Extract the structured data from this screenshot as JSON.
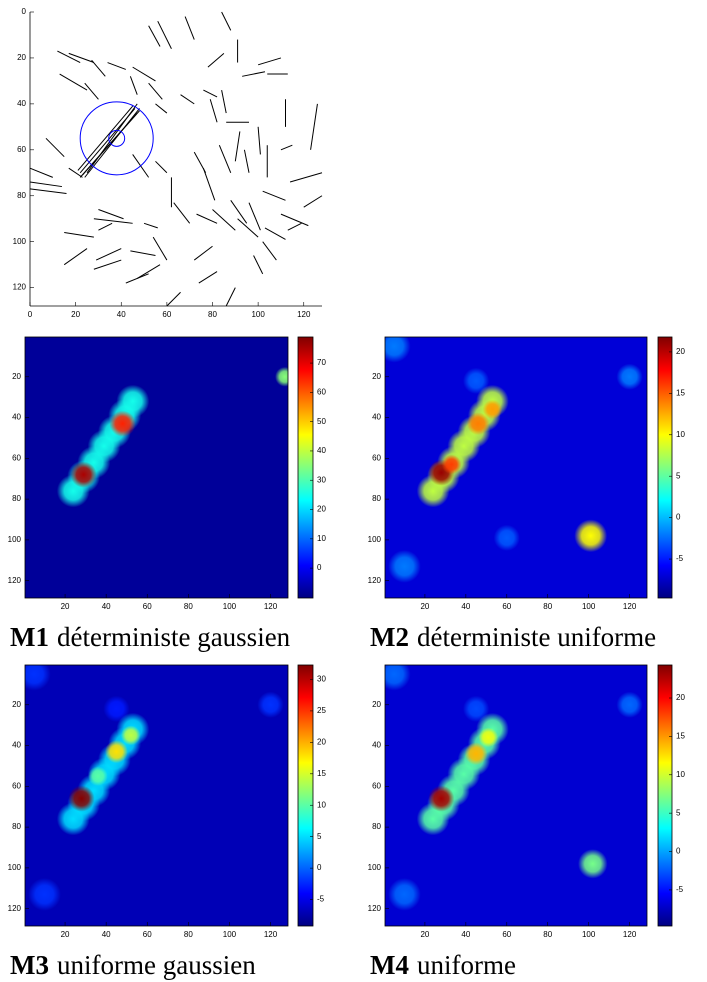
{
  "chart_data": [
    {
      "type": "segments",
      "xlim": [
        0,
        128
      ],
      "ylim": [
        0,
        128
      ],
      "y_reversed": true,
      "xticks": [
        0,
        20,
        40,
        60,
        80,
        100,
        120
      ],
      "yticks": [
        0,
        20,
        40,
        60,
        80,
        100,
        120
      ],
      "color": "#000000",
      "circle_color": "#0000ff",
      "segments": [
        [
          52,
          6,
          57,
          15
        ],
        [
          56,
          4,
          62,
          16
        ],
        [
          68,
          2,
          72,
          12
        ],
        [
          84,
          0,
          88,
          8
        ],
        [
          91,
          12,
          91,
          22
        ],
        [
          78,
          24,
          85,
          18
        ],
        [
          93,
          28,
          103,
          26
        ],
        [
          100,
          23,
          110,
          20
        ],
        [
          104,
          27,
          113,
          27
        ],
        [
          17,
          18,
          28,
          22
        ],
        [
          12,
          17,
          22,
          22
        ],
        [
          27,
          21,
          33,
          28
        ],
        [
          13,
          27,
          25,
          34
        ],
        [
          24,
          31,
          30,
          38
        ],
        [
          34,
          22,
          42,
          25
        ],
        [
          44,
          28,
          47,
          36
        ],
        [
          45,
          24,
          55,
          30
        ],
        [
          52,
          31,
          58,
          38
        ],
        [
          55,
          40,
          60,
          44
        ],
        [
          66,
          36,
          72,
          40
        ],
        [
          76,
          34,
          82,
          37
        ],
        [
          79,
          38,
          82,
          48
        ],
        [
          84,
          34,
          86,
          44
        ],
        [
          86,
          48,
          96,
          48
        ],
        [
          92,
          52,
          90,
          65
        ],
        [
          100,
          50,
          101,
          62
        ],
        [
          112,
          38,
          112,
          50
        ],
        [
          126,
          40,
          123,
          60
        ],
        [
          7,
          55,
          15,
          63
        ],
        [
          0,
          68,
          10,
          72
        ],
        [
          0,
          74,
          14,
          76
        ],
        [
          0,
          77,
          16,
          79
        ],
        [
          17,
          68,
          23,
          72
        ],
        [
          45,
          62,
          52,
          72
        ],
        [
          55,
          65,
          60,
          70
        ],
        [
          62,
          72,
          62,
          85
        ],
        [
          72,
          61,
          77,
          70
        ],
        [
          76,
          68,
          81,
          82
        ],
        [
          83,
          58,
          88,
          70
        ],
        [
          94,
          60,
          96,
          70
        ],
        [
          104,
          58,
          104,
          72
        ],
        [
          110,
          60,
          115,
          58
        ],
        [
          114,
          74,
          128,
          70
        ],
        [
          102,
          78,
          112,
          82
        ],
        [
          120,
          85,
          128,
          80
        ],
        [
          110,
          88,
          122,
          93
        ],
        [
          63,
          83,
          70,
          92
        ],
        [
          73,
          88,
          82,
          92
        ],
        [
          80,
          86,
          90,
          95
        ],
        [
          91,
          90,
          100,
          98
        ],
        [
          96,
          83,
          101,
          95
        ],
        [
          103,
          94,
          112,
          99
        ],
        [
          102,
          100,
          108,
          108
        ],
        [
          98,
          106,
          102,
          114
        ],
        [
          30,
          86,
          41,
          90
        ],
        [
          28,
          90,
          45,
          92
        ],
        [
          50,
          92,
          56,
          94
        ],
        [
          15,
          96,
          28,
          98
        ],
        [
          30,
          95,
          36,
          92
        ],
        [
          54,
          98,
          60,
          108
        ],
        [
          15,
          110,
          25,
          103
        ],
        [
          29,
          108,
          40,
          103
        ],
        [
          28,
          112,
          40,
          108
        ],
        [
          44,
          104,
          55,
          106
        ],
        [
          72,
          108,
          80,
          102
        ],
        [
          47,
          116,
          57,
          110
        ],
        [
          42,
          118,
          52,
          114
        ],
        [
          60,
          128,
          66,
          122
        ],
        [
          74,
          118,
          82,
          113
        ],
        [
          86,
          128,
          90,
          120
        ],
        [
          88,
          82,
          95,
          92
        ],
        [
          113,
          95,
          119,
          92
        ],
        [
          22,
          70,
          46,
          42
        ],
        [
          23,
          71,
          48,
          43
        ],
        [
          21,
          69,
          45,
          41
        ],
        [
          24,
          72,
          48,
          42
        ],
        [
          22,
          72,
          47,
          44
        ],
        [
          25,
          70,
          47,
          40
        ]
      ],
      "circles": [
        {
          "x": 38,
          "y": 55,
          "r": 16
        },
        {
          "x": 38,
          "y": 55,
          "r": 3.5
        }
      ]
    },
    {
      "type": "heatmap",
      "label": "M1",
      "caption": "déterministe gaussien",
      "xlim": [
        0.5,
        128.5
      ],
      "ylim": [
        0.5,
        128.5
      ],
      "y_reversed": true,
      "xticks": [
        20,
        40,
        60,
        80,
        100,
        120
      ],
      "yticks": [
        20,
        40,
        60,
        80,
        100,
        120
      ],
      "clim": [
        -10.2,
        78.9
      ],
      "cticks": [
        0,
        10,
        20,
        30,
        40,
        50,
        60,
        70
      ],
      "background": -8,
      "blobs": [
        {
          "x": 24,
          "y": 76,
          "r": 5,
          "value": 25
        },
        {
          "x": 29,
          "y": 69,
          "r": 5,
          "value": 25
        },
        {
          "x": 34,
          "y": 62,
          "r": 5,
          "value": 25
        },
        {
          "x": 39,
          "y": 54,
          "r": 5,
          "value": 25
        },
        {
          "x": 44,
          "y": 47,
          "r": 5,
          "value": 25
        },
        {
          "x": 49,
          "y": 39,
          "r": 5,
          "value": 25
        },
        {
          "x": 53,
          "y": 32,
          "r": 5,
          "value": 25
        },
        {
          "x": 29,
          "y": 68,
          "r": 4,
          "value": 75
        },
        {
          "x": 48,
          "y": 43,
          "r": 4,
          "value": 65
        },
        {
          "x": 127,
          "y": 20,
          "r": 3,
          "value": 35
        }
      ]
    },
    {
      "type": "heatmap",
      "label": "M2",
      "caption": "déterministe uniforme",
      "xlim": [
        0.5,
        128.5
      ],
      "ylim": [
        0.5,
        128.5
      ],
      "y_reversed": true,
      "xticks": [
        20,
        40,
        60,
        80,
        100,
        120
      ],
      "yticks": [
        20,
        40,
        60,
        80,
        100,
        120
      ],
      "clim": [
        -9.7,
        21.8
      ],
      "cticks": [
        -5,
        0,
        5,
        10,
        15,
        20
      ],
      "background": -7,
      "blobs": [
        {
          "x": 120,
          "y": 20,
          "r": 4,
          "value": -2
        },
        {
          "x": 5,
          "y": 5,
          "r": 5,
          "value": -2
        },
        {
          "x": 10,
          "y": 113,
          "r": 5,
          "value": -2
        },
        {
          "x": 60,
          "y": 99,
          "r": 4,
          "value": -3
        },
        {
          "x": 45,
          "y": 22,
          "r": 4,
          "value": -3
        },
        {
          "x": 24,
          "y": 76,
          "r": 5,
          "value": 8
        },
        {
          "x": 29,
          "y": 69,
          "r": 5,
          "value": 8
        },
        {
          "x": 34,
          "y": 62,
          "r": 5,
          "value": 8
        },
        {
          "x": 39,
          "y": 54,
          "r": 5,
          "value": 8
        },
        {
          "x": 44,
          "y": 47,
          "r": 5,
          "value": 8
        },
        {
          "x": 49,
          "y": 39,
          "r": 5,
          "value": 8
        },
        {
          "x": 53,
          "y": 32,
          "r": 5,
          "value": 8
        },
        {
          "x": 28,
          "y": 67,
          "r": 4,
          "value": 21
        },
        {
          "x": 33,
          "y": 63,
          "r": 3,
          "value": 16
        },
        {
          "x": 46,
          "y": 43,
          "r": 3.5,
          "value": 14
        },
        {
          "x": 53,
          "y": 36,
          "r": 3,
          "value": 13
        },
        {
          "x": 101,
          "y": 98,
          "r": 5,
          "value": 10
        }
      ]
    },
    {
      "type": "heatmap",
      "label": "M3",
      "caption": "uniforme gaussien",
      "xlim": [
        0.5,
        128.5
      ],
      "ylim": [
        0.5,
        128.5
      ],
      "y_reversed": true,
      "xticks": [
        20,
        40,
        60,
        80,
        100,
        120
      ],
      "yticks": [
        20,
        40,
        60,
        80,
        100,
        120
      ],
      "clim": [
        -9.2,
        32.3
      ],
      "cticks": [
        -5,
        0,
        5,
        10,
        15,
        20,
        25,
        30
      ],
      "background": -7,
      "blobs": [
        {
          "x": 120,
          "y": 20,
          "r": 4,
          "value": -2
        },
        {
          "x": 5,
          "y": 5,
          "r": 5,
          "value": -2
        },
        {
          "x": 10,
          "y": 113,
          "r": 5,
          "value": -2
        },
        {
          "x": 45,
          "y": 22,
          "r": 4,
          "value": -3
        },
        {
          "x": 24,
          "y": 76,
          "r": 5,
          "value": 5
        },
        {
          "x": 29,
          "y": 69,
          "r": 5,
          "value": 5
        },
        {
          "x": 34,
          "y": 62,
          "r": 5,
          "value": 5
        },
        {
          "x": 39,
          "y": 54,
          "r": 5,
          "value": 5
        },
        {
          "x": 44,
          "y": 47,
          "r": 5,
          "value": 5
        },
        {
          "x": 49,
          "y": 39,
          "r": 5,
          "value": 5
        },
        {
          "x": 53,
          "y": 32,
          "r": 5,
          "value": 5
        },
        {
          "x": 28,
          "y": 66,
          "r": 4,
          "value": 32
        },
        {
          "x": 45,
          "y": 43,
          "r": 3.5,
          "value": 18
        },
        {
          "x": 52,
          "y": 35,
          "r": 3,
          "value": 14
        },
        {
          "x": 36,
          "y": 55,
          "r": 3,
          "value": 10
        }
      ]
    },
    {
      "type": "heatmap",
      "label": "M4",
      "caption": "uniforme",
      "xlim": [
        0.5,
        128.5
      ],
      "ylim": [
        0.5,
        128.5
      ],
      "y_reversed": true,
      "xticks": [
        20,
        40,
        60,
        80,
        100,
        120
      ],
      "yticks": [
        20,
        40,
        60,
        80,
        100,
        120
      ],
      "clim": [
        -9.7,
        24.3
      ],
      "cticks": [
        -5,
        0,
        5,
        10,
        15,
        20
      ],
      "background": -7,
      "blobs": [
        {
          "x": 120,
          "y": 20,
          "r": 4,
          "value": -2
        },
        {
          "x": 5,
          "y": 5,
          "r": 5,
          "value": -2
        },
        {
          "x": 10,
          "y": 113,
          "r": 5,
          "value": -2
        },
        {
          "x": 45,
          "y": 22,
          "r": 4,
          "value": -3
        },
        {
          "x": 24,
          "y": 76,
          "r": 5,
          "value": 6
        },
        {
          "x": 29,
          "y": 69,
          "r": 5,
          "value": 6
        },
        {
          "x": 34,
          "y": 62,
          "r": 5,
          "value": 6
        },
        {
          "x": 39,
          "y": 54,
          "r": 5,
          "value": 6
        },
        {
          "x": 44,
          "y": 47,
          "r": 5,
          "value": 6
        },
        {
          "x": 49,
          "y": 39,
          "r": 5,
          "value": 6
        },
        {
          "x": 53,
          "y": 32,
          "r": 5,
          "value": 6
        },
        {
          "x": 28,
          "y": 66,
          "r": 4,
          "value": 23
        },
        {
          "x": 45,
          "y": 44,
          "r": 3.5,
          "value": 14
        },
        {
          "x": 51,
          "y": 36,
          "r": 3,
          "value": 11
        },
        {
          "x": 102,
          "y": 98,
          "r": 4.5,
          "value": 7
        }
      ]
    }
  ]
}
